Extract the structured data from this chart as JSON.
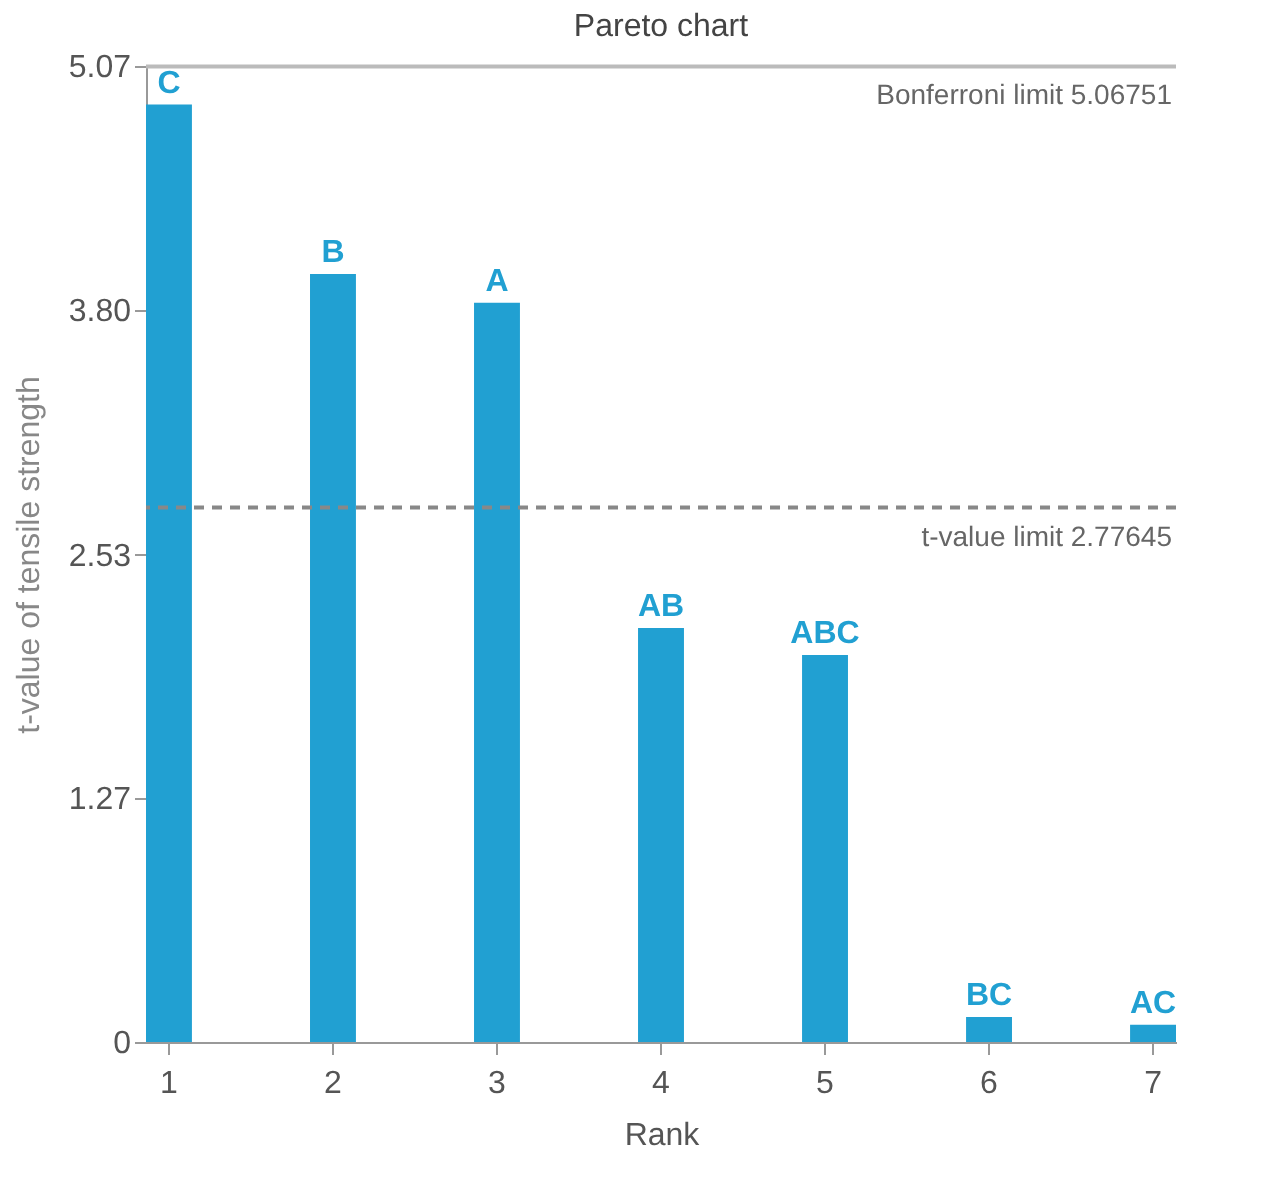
{
  "chart_data": {
    "type": "bar",
    "title": "Pareto chart",
    "xlabel": "Rank",
    "ylabel": "t-value of tensile strength",
    "categories": [
      "1",
      "2",
      "3",
      "4",
      "5",
      "6",
      "7"
    ],
    "series": [
      {
        "color": "#21a0d2",
        "values": [
          4.87,
          3.99,
          3.84,
          2.15,
          2.01,
          0.13,
          0.09
        ]
      }
    ],
    "ylim": [
      0,
      5.07
    ],
    "yticks": [
      0,
      1.27,
      2.53,
      {
        "value": 3.8,
        "label": "3.80"
      },
      5.07
    ],
    "ref_lines": [
      {
        "axis": "y",
        "value": 5.06751,
        "label": "Bonferroni limit   5.06751",
        "color": "#bbbbbb",
        "line_style": "solid"
      },
      {
        "axis": "y",
        "value": 2.77645,
        "label": "t-value limit   2.77645",
        "color": "#888888",
        "line_style": "dashed"
      }
    ],
    "annotations": [
      {
        "text": "C",
        "x": "1",
        "y": 4.87
      },
      {
        "text": "B",
        "x": "2",
        "y": 3.99
      },
      {
        "text": "A",
        "x": "3",
        "y": 3.84
      },
      {
        "text": "AB",
        "x": "4",
        "y": 2.15
      },
      {
        "text": "ABC",
        "x": "5",
        "y": 2.01
      },
      {
        "text": "BC",
        "x": "6",
        "y": 0.13
      },
      {
        "text": "AC",
        "x": "7",
        "y": 0.09
      }
    ],
    "grid": false,
    "legend": false
  }
}
